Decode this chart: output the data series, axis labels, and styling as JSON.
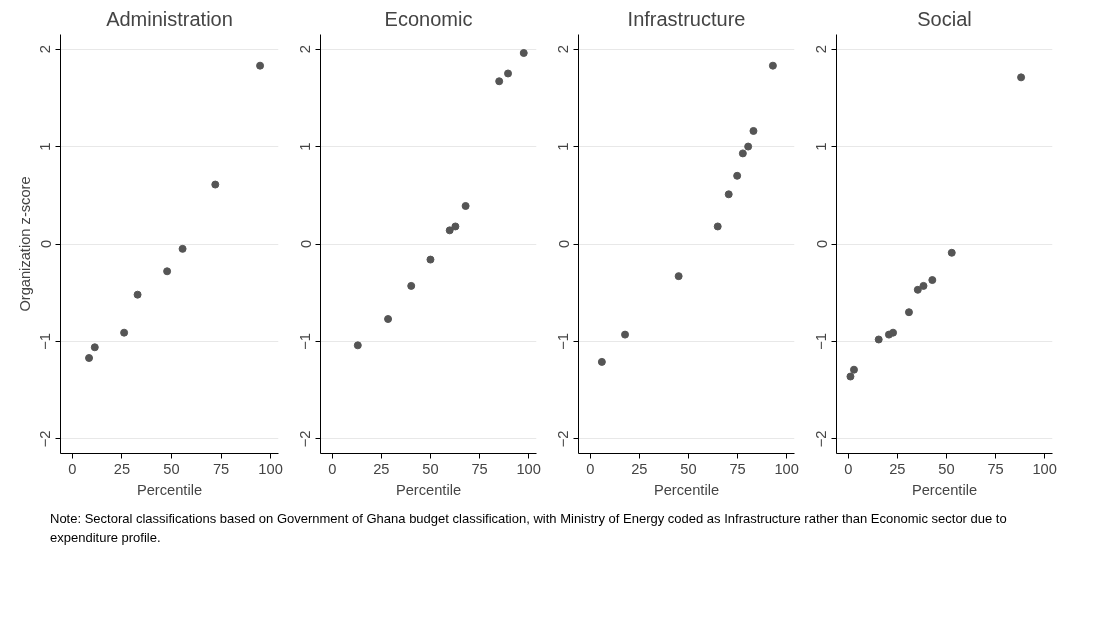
{
  "chart_data": [
    {
      "type": "scatter",
      "title": "Administration",
      "xlabel": "Percentile",
      "ylabel": "Organization z-score",
      "color": "#555555",
      "marker": "circle",
      "grid": "y",
      "xlim": [
        -6,
        104
      ],
      "xticks": [
        0,
        25,
        50,
        75,
        100
      ],
      "ylim": [
        -2.15,
        2.15
      ],
      "yticks": [
        -2,
        -1,
        0,
        1,
        2
      ],
      "x": [
        8.4,
        11.3,
        26.1,
        32.9,
        47.8,
        55.6,
        72.1,
        94.7
      ],
      "values": [
        -1.17,
        -1.06,
        -0.91,
        -0.52,
        -0.28,
        -0.05,
        0.61,
        1.83
      ]
    },
    {
      "type": "scatter",
      "title": "Economic",
      "xlabel": "Percentile",
      "color": "#555555",
      "marker": "circle",
      "grid": "y",
      "xlim": [
        -6,
        104
      ],
      "xticks": [
        0,
        25,
        50,
        75,
        100
      ],
      "ylim": [
        -2.15,
        2.15
      ],
      "yticks": [
        -2,
        -1,
        0,
        1,
        2
      ],
      "x": [
        13.0,
        28.4,
        40.2,
        50.0,
        59.8,
        62.7,
        67.9,
        85.0,
        89.5,
        97.5
      ],
      "values": [
        -1.04,
        -0.77,
        -0.43,
        -0.16,
        0.14,
        0.18,
        0.39,
        1.67,
        1.75,
        1.96
      ]
    },
    {
      "type": "scatter",
      "title": "Infrastructure",
      "xlabel": "Percentile",
      "color": "#555555",
      "marker": "circle",
      "grid": "y",
      "xlim": [
        -6,
        104
      ],
      "xticks": [
        0,
        25,
        50,
        75,
        100
      ],
      "ylim": [
        -2.15,
        2.15
      ],
      "yticks": [
        -2,
        -1,
        0,
        1,
        2
      ],
      "x": [
        5.9,
        17.7,
        45.0,
        64.9,
        70.5,
        74.8,
        77.7,
        80.4,
        83.1,
        93.0
      ],
      "values": [
        -1.21,
        -0.93,
        -0.33,
        0.18,
        0.51,
        0.7,
        0.93,
        1.0,
        1.16,
        1.83
      ]
    },
    {
      "type": "scatter",
      "title": "Social",
      "xlabel": "Percentile",
      "color": "#555555",
      "marker": "circle",
      "grid": "y",
      "xlim": [
        -6,
        104
      ],
      "xticks": [
        0,
        25,
        50,
        75,
        100
      ],
      "ylim": [
        -2.15,
        2.15
      ],
      "yticks": [
        -2,
        -1,
        0,
        1,
        2
      ],
      "x": [
        1.1,
        2.9,
        15.5,
        20.7,
        22.8,
        30.9,
        35.4,
        38.3,
        42.8,
        52.7,
        88.0
      ],
      "values": [
        -1.36,
        -1.29,
        -0.98,
        -0.93,
        -0.91,
        -0.7,
        -0.47,
        -0.43,
        -0.37,
        -0.09,
        1.71
      ],
      "annotations": [
        "Note: Sectoral classifications based on Government of Ghana budget classification, with Ministry of Energy coded as Infrastructure rather than Economic sector due to expenditure profile."
      ]
    }
  ]
}
